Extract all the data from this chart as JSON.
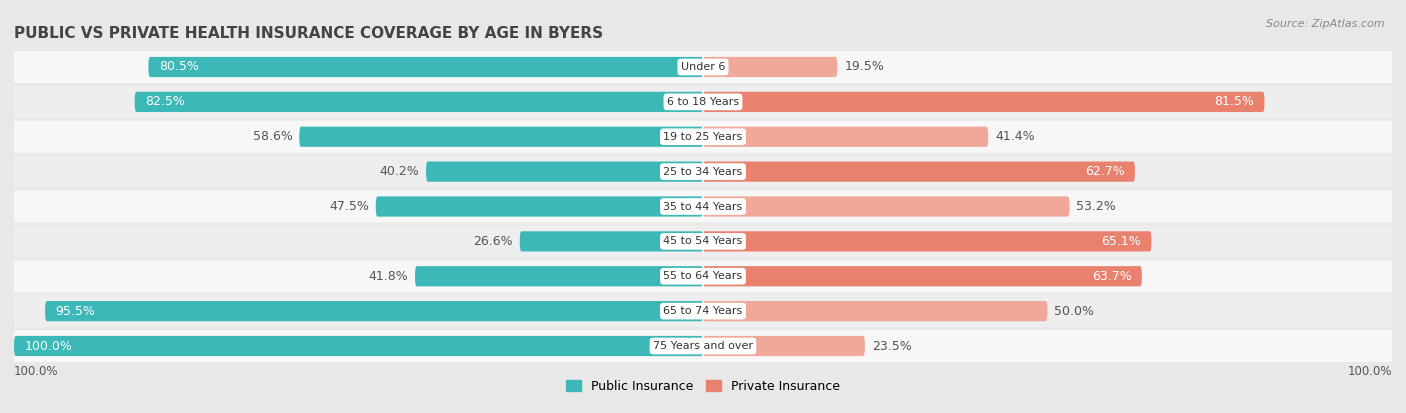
{
  "title": "PUBLIC VS PRIVATE HEALTH INSURANCE COVERAGE BY AGE IN BYERS",
  "source": "Source: ZipAtlas.com",
  "categories": [
    "Under 6",
    "6 to 18 Years",
    "19 to 25 Years",
    "25 to 34 Years",
    "35 to 44 Years",
    "45 to 54 Years",
    "55 to 64 Years",
    "65 to 74 Years",
    "75 Years and over"
  ],
  "public_values": [
    80.5,
    82.5,
    58.6,
    40.2,
    47.5,
    26.6,
    41.8,
    95.5,
    100.0
  ],
  "private_values": [
    19.5,
    81.5,
    41.4,
    62.7,
    53.2,
    65.1,
    63.7,
    50.0,
    23.5
  ],
  "public_color": "#3db8b8",
  "private_color": "#e8826e",
  "private_color_light": "#f0a898",
  "bg_color": "#e8e8e8",
  "row_colors": [
    "#f7f7f7",
    "#eeeeee"
  ],
  "bar_height": 0.58,
  "label_fontsize": 9.0,
  "title_fontsize": 11,
  "max_value": 100.0,
  "x_axis_label_left": "100.0%",
  "x_axis_label_right": "100.0%",
  "public_inside_threshold": 15,
  "private_inside_threshold": 55
}
